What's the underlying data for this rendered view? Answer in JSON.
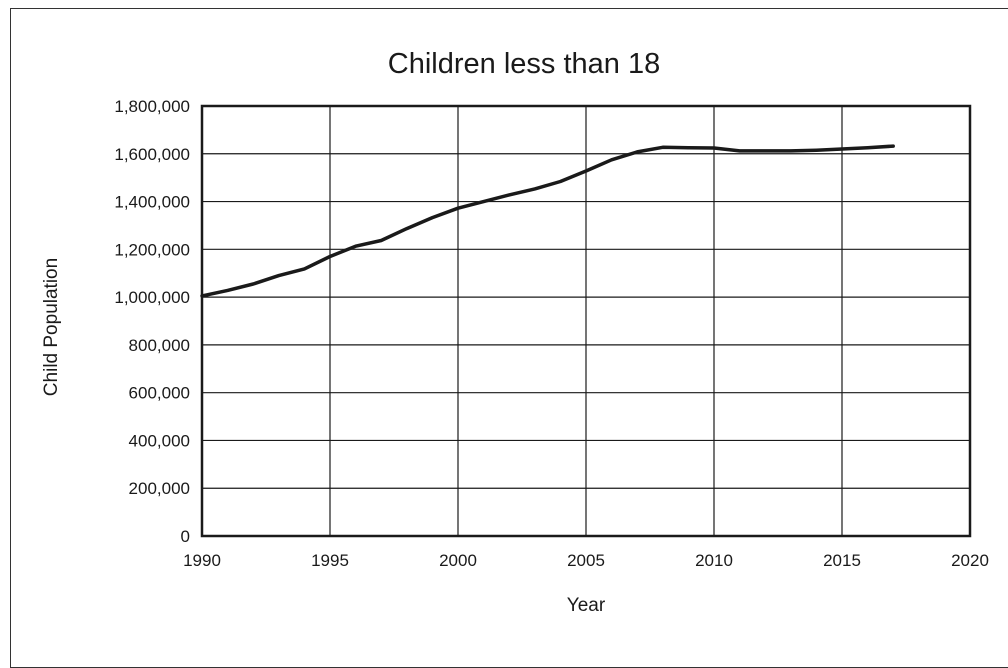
{
  "chart_data": {
    "type": "line",
    "title": "Children less than 18",
    "xlabel": "Year",
    "ylabel": "Child Population",
    "xlim": [
      1990,
      2020
    ],
    "ylim": [
      0,
      1800000
    ],
    "x_ticks": [
      1990,
      1995,
      2000,
      2005,
      2010,
      2015,
      2020
    ],
    "x_tick_labels": [
      "1990",
      "1995",
      "2000",
      "2005",
      "2010",
      "2015",
      "2020"
    ],
    "y_ticks": [
      0,
      200000,
      400000,
      600000,
      800000,
      1000000,
      1200000,
      1400000,
      1600000,
      1800000
    ],
    "y_tick_labels": [
      "0",
      "200,000",
      "400,000",
      "600,000",
      "800,000",
      "1,000,000",
      "1,200,000",
      "1,400,000",
      "1,600,000",
      "1,800,000"
    ],
    "grid": true,
    "legend": false,
    "series": [
      {
        "color": "#1a1a1a",
        "x": [
          1990,
          1991,
          1992,
          1993,
          1994,
          1995,
          1996,
          1997,
          1998,
          1999,
          2000,
          2001,
          2002,
          2003,
          2004,
          2005,
          2006,
          2007,
          2008,
          2009,
          2010,
          2011,
          2012,
          2013,
          2014,
          2015,
          2016,
          2017
        ],
        "y": [
          1005000,
          1028000,
          1055000,
          1090000,
          1118000,
          1170000,
          1213000,
          1237000,
          1287000,
          1333000,
          1372000,
          1400000,
          1428000,
          1453000,
          1484000,
          1528000,
          1575000,
          1608000,
          1627000,
          1625000,
          1624000,
          1612000,
          1612000,
          1612000,
          1615000,
          1620000,
          1625000,
          1632000
        ]
      }
    ]
  }
}
